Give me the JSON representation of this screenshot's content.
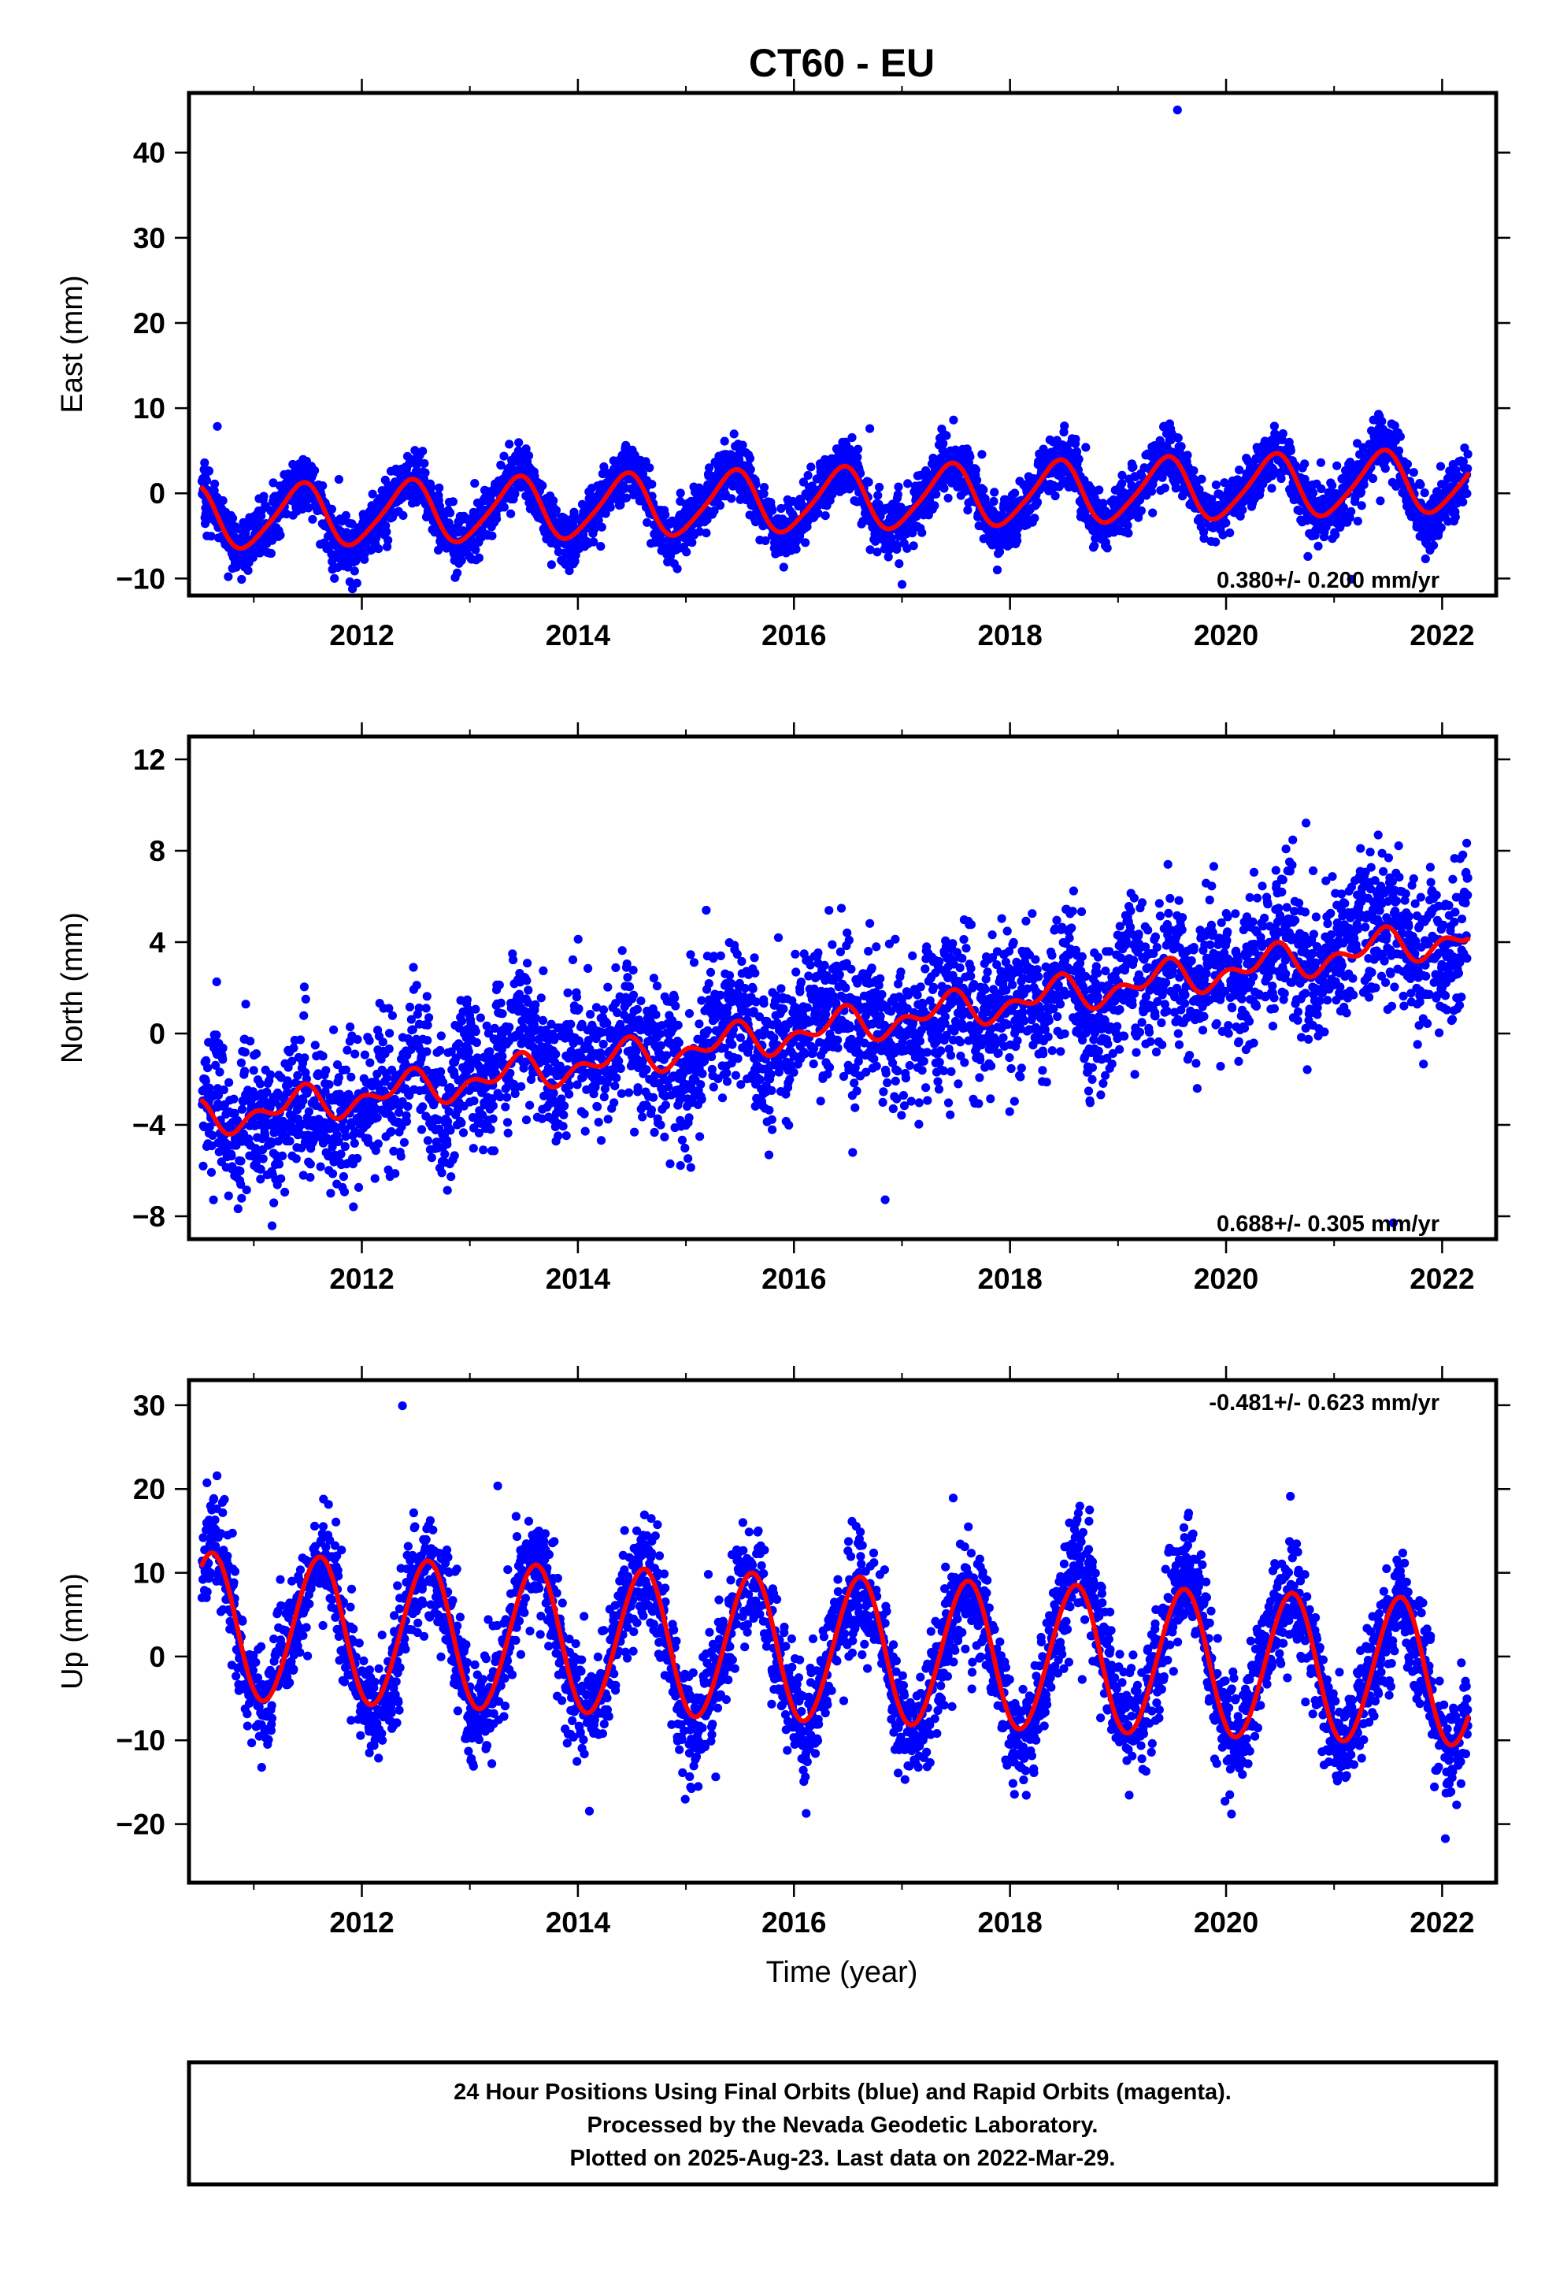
{
  "title": "CT60 - EU",
  "xlabel": "Time (year)",
  "footer": {
    "line1": "24 Hour Positions Using Final Orbits (blue) and Rapid Orbits (magenta).",
    "line2": "Processed by the Nevada Geodetic Laboratory.",
    "line3": "Plotted on 2025-Aug-23. Last data on 2022-Mar-29."
  },
  "colors": {
    "data": "#0000ff",
    "model": "#ff0000",
    "axes": "#000000"
  },
  "chart_data": [
    {
      "type": "scatter",
      "ylabel": "East (mm)",
      "rate_text": "0.380+/- 0.200 mm/yr",
      "rate_position": "bottom-right",
      "xlim": [
        2010.4,
        2022.5
      ],
      "ylim": [
        -12,
        47
      ],
      "xticks": [
        2012,
        2014,
        2016,
        2018,
        2020,
        2022
      ],
      "xtick_labels": [
        "2012",
        "2014",
        "2016",
        "2018",
        "2020",
        "2022"
      ],
      "yticks": [
        -10,
        0,
        10,
        20,
        30,
        40
      ],
      "ytick_labels": [
        "−10",
        "0",
        "10",
        "20",
        "30",
        "40"
      ],
      "data_start": 2010.52,
      "data_end": 2022.24,
      "series": [
        {
          "kind": "points",
          "x": [
            2010.55,
            2010.8,
            2011.05,
            2011.3,
            2011.45,
            2011.6,
            2011.8,
            2012.0,
            2012.15,
            2012.3,
            2012.45,
            2012.6,
            2012.8,
            2013.0,
            2013.2,
            2013.45,
            2013.6,
            2013.8,
            2014.0,
            2014.2,
            2014.45,
            2014.6,
            2014.8,
            2015.0,
            2015.2,
            2015.45,
            2015.6,
            2015.8,
            2016.0,
            2016.2,
            2016.45,
            2016.6,
            2016.8,
            2017.0,
            2017.2,
            2017.45,
            2017.6,
            2017.8,
            2018.0,
            2018.2,
            2018.45,
            2018.6,
            2018.8,
            2019.0,
            2019.2,
            2019.45,
            2019.55,
            2019.6,
            2019.8,
            2020.0,
            2020.2,
            2020.45,
            2020.6,
            2020.8,
            2021.0,
            2021.2,
            2021.45,
            2021.6,
            2021.8,
            2022.0,
            2022.2
          ],
          "y": [
            2,
            -4,
            -5,
            0,
            3,
            1,
            -3,
            -5,
            -3,
            1,
            4,
            1,
            -2,
            -3,
            -1,
            5,
            2,
            -2,
            -3,
            0,
            4,
            2,
            -2,
            -3,
            0,
            3,
            1,
            -2,
            -3,
            0,
            6,
            3,
            -2,
            -3,
            1,
            5,
            3,
            -2,
            -2,
            1,
            5,
            3,
            -1,
            -3,
            1,
            7,
            45,
            4,
            -1,
            -2,
            2,
            7,
            5,
            1,
            -1,
            2,
            7,
            5,
            1,
            -1,
            3
          ]
        },
        {
          "kind": "model",
          "name": "",
          "trend_mm_per_yr": 0.38,
          "offset_mm": -0.8,
          "annual_amplitude_mm": 3.6,
          "annual_peak_year_fraction": 0.43,
          "semiannual_amplitude_mm": 0.6
        }
      ]
    },
    {
      "type": "scatter",
      "ylabel": "North (mm)",
      "rate_text": "0.688+/- 0.305 mm/yr",
      "rate_position": "bottom-right",
      "xlim": [
        2010.4,
        2022.5
      ],
      "ylim": [
        -9,
        13
      ],
      "xticks": [
        2012,
        2014,
        2016,
        2018,
        2020,
        2022
      ],
      "xtick_labels": [
        "2012",
        "2014",
        "2016",
        "2018",
        "2020",
        "2022"
      ],
      "yticks": [
        -8,
        -4,
        0,
        4,
        8,
        12
      ],
      "ytick_labels": [
        "−8",
        "−4",
        "0",
        "4",
        "8",
        "12"
      ],
      "data_start": 2010.52,
      "data_end": 2022.24,
      "series": [
        {
          "kind": "points",
          "x": [
            2010.6,
            2010.9,
            2011.2,
            2011.5,
            2011.8,
            2012.1,
            2012.4,
            2012.7,
            2013.0,
            2013.3,
            2013.6,
            2013.9,
            2014.2,
            2014.5,
            2014.8,
            2015.1,
            2015.4,
            2015.7,
            2016.0,
            2016.3,
            2016.6,
            2016.9,
            2017.2,
            2017.5,
            2017.8,
            2018.1,
            2018.4,
            2018.7,
            2019.0,
            2019.3,
            2019.6,
            2019.9,
            2020.2,
            2020.5,
            2020.8,
            2021.1,
            2021.4,
            2021.7,
            2022.0,
            2022.2
          ],
          "y": [
            -3.5,
            -4,
            -3,
            -2.5,
            -3,
            -3,
            -1.5,
            -2,
            -3,
            -1,
            -1.5,
            -2,
            0,
            -1,
            -1,
            -1.5,
            0,
            -0.5,
            -1,
            0.5,
            0.5,
            -0.5,
            1,
            2,
            1.5,
            0.5,
            2.5,
            2.5,
            1,
            3.5,
            3.5,
            3,
            2,
            3.5,
            3.5,
            2.5,
            4.5,
            4,
            4,
            3.5
          ]
        },
        {
          "kind": "model",
          "name": "",
          "trend_mm_per_yr": 0.688,
          "offset_mm": 0.2,
          "annual_amplitude_mm": 0.55,
          "annual_peak_year_fraction": 0.4,
          "semiannual_amplitude_mm": 0.45
        }
      ]
    },
    {
      "type": "scatter",
      "ylabel": "Up (mm)",
      "rate_text": "-0.481+/- 0.623 mm/yr",
      "rate_position": "top-right",
      "xlim": [
        2010.4,
        2022.5
      ],
      "ylim": [
        -27,
        33
      ],
      "xticks": [
        2012,
        2014,
        2016,
        2018,
        2020,
        2022
      ],
      "xtick_labels": [
        "2012",
        "2014",
        "2016",
        "2018",
        "2020",
        "2022"
      ],
      "yticks": [
        -20,
        -10,
        0,
        10,
        20,
        30
      ],
      "ytick_labels": [
        "−20",
        "−10",
        "0",
        "10",
        "20",
        "30"
      ],
      "data_start": 2010.52,
      "data_end": 2022.24,
      "series": [
        {
          "kind": "points",
          "x": [
            2010.55,
            2010.8,
            2011.05,
            2011.3,
            2011.6,
            2011.85,
            2012.05,
            2012.3,
            2012.6,
            2012.85,
            2013.05,
            2013.3,
            2013.6,
            2013.85,
            2014.05,
            2014.3,
            2014.6,
            2014.85,
            2015.05,
            2015.3,
            2015.6,
            2015.85,
            2016.05,
            2016.3,
            2016.6,
            2016.85,
            2017.05,
            2017.3,
            2017.6,
            2017.85,
            2018.05,
            2018.3,
            2018.6,
            2018.85,
            2019.05,
            2019.3,
            2019.6,
            2019.85,
            2020.05,
            2020.3,
            2020.6,
            2020.85,
            2021.05,
            2021.3,
            2021.6,
            2021.85,
            2022.05,
            2022.2
          ],
          "y": [
            11,
            4,
            -6,
            3,
            12,
            3,
            -6,
            3,
            11,
            3,
            -7,
            2,
            10,
            2,
            -7,
            2,
            10,
            1,
            -8,
            1,
            10,
            1,
            -8,
            0,
            9,
            0,
            -9,
            0,
            8,
            -1,
            -9,
            0,
            8,
            -1,
            -10,
            -1,
            8,
            -2,
            -10,
            -2,
            7,
            -2,
            -11,
            -2,
            7,
            -3,
            -10,
            -8
          ]
        },
        {
          "kind": "model",
          "name": "",
          "trend_mm_per_yr": -0.481,
          "offset_mm": 0.8,
          "annual_amplitude_mm": 8.7,
          "annual_peak_year_fraction": 0.6,
          "semiannual_amplitude_mm": 0.4
        }
      ]
    }
  ]
}
